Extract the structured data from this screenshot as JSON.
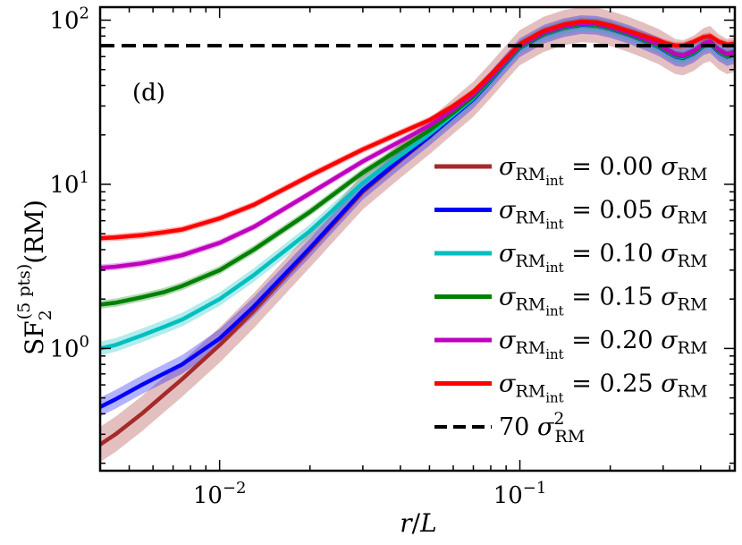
{
  "chart_data": {
    "type": "line",
    "panel_label": "(d)",
    "xlabel": "r/L",
    "ylabel": "SF2(5pts)(RM)",
    "xscale": "log",
    "yscale": "log",
    "xlim": [
      0.004,
      0.52
    ],
    "ylim": [
      0.18,
      120
    ],
    "xticks": [
      {
        "value": 0.01,
        "base": "10",
        "exp": "−2"
      },
      {
        "value": 0.1,
        "base": "10",
        "exp": "−1"
      }
    ],
    "yticks": [
      {
        "value": 1,
        "base": "10",
        "exp": "0"
      },
      {
        "value": 10,
        "base": "10",
        "exp": "1"
      },
      {
        "value": 100,
        "base": "10",
        "exp": "2"
      }
    ],
    "x": [
      0.004,
      0.0045,
      0.0055,
      0.0065,
      0.0075,
      0.01,
      0.013,
      0.02,
      0.03,
      0.04,
      0.05,
      0.06,
      0.07,
      0.08,
      0.09,
      0.1,
      0.12,
      0.14,
      0.16,
      0.18,
      0.2,
      0.23,
      0.26,
      0.29,
      0.31,
      0.33,
      0.35,
      0.38,
      0.41,
      0.43,
      0.46,
      0.49,
      0.52
    ],
    "series": [
      {
        "name": "0.00",
        "color": "#a52a2a",
        "band": 0.28,
        "values": [
          0.26,
          0.3,
          0.4,
          0.52,
          0.65,
          1.05,
          1.7,
          4.0,
          9.0,
          14.0,
          19.5,
          26,
          33,
          43,
          55,
          68,
          82,
          90,
          94,
          93,
          89,
          82,
          75,
          69,
          64,
          60,
          59,
          63,
          70,
          72,
          64,
          60,
          62
        ]
      },
      {
        "name": "0.05",
        "color": "#0000ff",
        "band": 0.14,
        "values": [
          0.44,
          0.49,
          0.6,
          0.7,
          0.8,
          1.15,
          1.8,
          4.1,
          9.2,
          14.2,
          19.6,
          26,
          33,
          43,
          55,
          68,
          82,
          90,
          94,
          93,
          89,
          82,
          75,
          69,
          64,
          60,
          59,
          63,
          70,
          72,
          64,
          60,
          62
        ]
      },
      {
        "name": "0.10",
        "color": "#00bfbf",
        "band": 0.1,
        "values": [
          1.0,
          1.05,
          1.2,
          1.35,
          1.5,
          2.0,
          2.8,
          5.2,
          10.2,
          15.0,
          20.2,
          26.5,
          33.5,
          43.5,
          55.5,
          68.5,
          82.5,
          90.5,
          94.5,
          93.5,
          89.5,
          82.5,
          75.5,
          69.5,
          64.5,
          60.5,
          59.5,
          63.5,
          70.5,
          72.5,
          64.5,
          60.5,
          62.5
        ]
      },
      {
        "name": "0.15",
        "color": "#008000",
        "band": 0.06,
        "values": [
          1.85,
          1.9,
          2.05,
          2.2,
          2.4,
          3.0,
          4.0,
          6.8,
          11.8,
          16.5,
          21.3,
          27.3,
          34.2,
          44,
          56,
          69,
          83,
          91,
          95,
          94,
          90,
          83,
          76,
          70,
          65,
          61,
          60,
          64,
          71,
          73,
          65,
          61,
          63
        ]
      },
      {
        "name": "0.20",
        "color": "#bf00bf",
        "band": 0.05,
        "values": [
          3.1,
          3.15,
          3.3,
          3.5,
          3.7,
          4.4,
          5.5,
          8.8,
          13.8,
          18.3,
          22.8,
          28.5,
          35.2,
          45,
          57,
          70,
          84,
          92,
          96,
          95,
          91,
          84,
          77,
          71,
          66,
          62,
          61,
          65,
          72,
          74,
          66,
          62,
          64
        ]
      },
      {
        "name": "0.25",
        "color": "#ff0000",
        "band": 0.05,
        "values": [
          4.7,
          4.75,
          4.9,
          5.1,
          5.3,
          6.2,
          7.5,
          11.3,
          16.3,
          20.6,
          24.6,
          30,
          36.6,
          46.5,
          58.5,
          71.5,
          86,
          94,
          98,
          97,
          93,
          86,
          80,
          75,
          72,
          70,
          70,
          74,
          79,
          80,
          74,
          71,
          72
        ]
      }
    ],
    "legend": {
      "placement": "lower-right",
      "entries": [
        {
          "sigma": "σ",
          "sub": "RM",
          "subsub": "int",
          "rhs": "= 0.00",
          "rhs_sigma": "σ",
          "rhs_sub": "RM",
          "color": "#a52a2a"
        },
        {
          "sigma": "σ",
          "sub": "RM",
          "subsub": "int",
          "rhs": "= 0.05",
          "rhs_sigma": "σ",
          "rhs_sub": "RM",
          "color": "#0000ff"
        },
        {
          "sigma": "σ",
          "sub": "RM",
          "subsub": "int",
          "rhs": "= 0.10",
          "rhs_sigma": "σ",
          "rhs_sub": "RM",
          "color": "#00bfbf"
        },
        {
          "sigma": "σ",
          "sub": "RM",
          "subsub": "int",
          "rhs": "= 0.15",
          "rhs_sigma": "σ",
          "rhs_sub": "RM",
          "color": "#008000"
        },
        {
          "sigma": "σ",
          "sub": "RM",
          "subsub": "int",
          "rhs": "= 0.20",
          "rhs_sigma": "σ",
          "rhs_sub": "RM",
          "color": "#bf00bf"
        },
        {
          "sigma": "σ",
          "sub": "RM",
          "subsub": "int",
          "rhs": "= 0.25",
          "rhs_sigma": "σ",
          "rhs_sub": "RM",
          "color": "#ff0000"
        }
      ],
      "reference_entry": {
        "coef": "70",
        "sigma": "σ",
        "sup": "2",
        "sub": "RM"
      }
    },
    "reference_line": {
      "y": 70,
      "style": "dashed",
      "color": "#000000"
    }
  }
}
